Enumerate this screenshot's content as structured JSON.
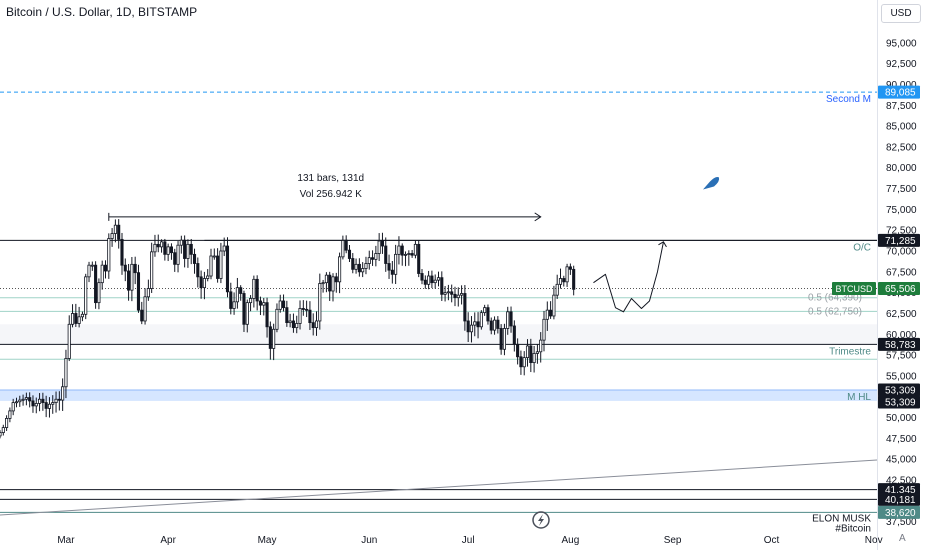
{
  "header": {
    "title": "Bitcoin / U.S. Dollar, 1D, BITSTAMP"
  },
  "axis": {
    "currency": "USD",
    "auto": "A"
  },
  "measure": {
    "bars_label": "131 bars, 131d",
    "vol_label": "Vol 256.942 K"
  },
  "colors": {
    "up": "#131722",
    "down": "#131722",
    "blue_line": "#2962ff",
    "dashed": "#2196f3",
    "teal_text": "#4f8a87"
  },
  "chart_data": {
    "type": "candlestick",
    "ylim": [
      36500,
      97500
    ],
    "y_ticks": [
      37500,
      40000,
      42500,
      45000,
      47500,
      50000,
      52500,
      55000,
      57500,
      60000,
      62500,
      65000,
      67500,
      70000,
      72500,
      75000,
      77500,
      80000,
      82500,
      85000,
      87500,
      90000,
      92500,
      95000
    ],
    "y_tick_labels": [
      "37,500",
      "40,000",
      "42,500",
      "45,000",
      "47,500",
      "50,000",
      "52,500",
      "55,000",
      "57,500",
      "60,000",
      "62,500",
      "65,000",
      "67,500",
      "70,000",
      "72,500",
      "75,000",
      "77,500",
      "80,000",
      "82,500",
      "85,000",
      "87,500",
      "90,000",
      "92,500",
      "95,000"
    ],
    "x_labels": [
      {
        "label": "Mar",
        "date": "2024-03-01"
      },
      {
        "label": "Apr",
        "date": "2024-04-01"
      },
      {
        "label": "May",
        "date": "2024-05-01"
      },
      {
        "label": "Jun",
        "date": "2024-06-01"
      },
      {
        "label": "Jul",
        "date": "2024-07-01"
      },
      {
        "label": "Aug",
        "date": "2024-08-01"
      },
      {
        "label": "Sep",
        "date": "2024-09-01"
      },
      {
        "label": "Oct",
        "date": "2024-10-01"
      },
      {
        "label": "Nov",
        "date": "2024-11-01"
      }
    ],
    "x_range": [
      "2024-02-10",
      "2024-11-02"
    ],
    "close_series_start": "2024-02-10",
    "closes": [
      48200,
      48800,
      49900,
      50800,
      51800,
      51900,
      52100,
      52200,
      52400,
      52000,
      51400,
      51700,
      52200,
      51800,
      51100,
      51600,
      51800,
      52200,
      52100,
      53700,
      57100,
      61200,
      62500,
      61300,
      62100,
      62400,
      66900,
      68300,
      68300,
      63800,
      66200,
      68300,
      67600,
      71500,
      72100,
      73100,
      71400,
      68300,
      67600,
      65300,
      68400,
      67400,
      62900,
      61600,
      64500,
      65500,
      69900,
      70800,
      70500,
      71100,
      69600,
      70500,
      69800,
      68400,
      70700,
      71300,
      69100,
      70800,
      69600,
      68500,
      66900,
      65600,
      66700,
      67000,
      69400,
      69400,
      66700,
      70000,
      70600,
      65100,
      63100,
      63900,
      65600,
      64900,
      61200,
      63800,
      64300,
      66600,
      64000,
      63500,
      63800,
      60900,
      58300,
      60600,
      63000,
      64000,
      63200,
      61400,
      61600,
      60800,
      61300,
      63100,
      63000,
      62900,
      61400,
      60800,
      61600,
      66100,
      66200,
      67100,
      65200,
      66900,
      66300,
      69300,
      71300,
      70100,
      69100,
      67800,
      68400,
      67500,
      67900,
      68500,
      69200,
      69000,
      69700,
      71200,
      70600,
      68500,
      67700,
      67200,
      69600,
      70600,
      69500,
      69600,
      69700,
      69500,
      70800,
      67300,
      66500,
      66000,
      67000,
      66200,
      66500,
      66800,
      64800,
      65000,
      65100,
      64800,
      64400,
      64700,
      64900,
      61600,
      60300,
      61100,
      61500,
      60900,
      62600,
      63200,
      61600,
      60500,
      61700,
      60700,
      58200,
      60700,
      62700,
      61000,
      58800,
      57300,
      56100,
      57200,
      58600,
      56600,
      57700,
      57900,
      59300,
      61800,
      62900,
      62200,
      64700,
      66000,
      66700,
      66300,
      68100,
      67800,
      65400
    ]
  },
  "levels": [
    {
      "value": 89085,
      "label": "89,085",
      "caption": "Second M",
      "style": "dashed-blue"
    },
    {
      "value": 71285,
      "label": "71,285",
      "caption": "O/C",
      "style": "dark"
    },
    {
      "value": 58783,
      "label": "58,783",
      "caption": "Trimestre",
      "style": "dark"
    },
    {
      "value": 53309,
      "label": "53,309",
      "caption": "M HL",
      "style": "dark"
    },
    {
      "value": 53309,
      "label": "53,309",
      "caption": "",
      "style": "blue-zone"
    },
    {
      "value": 41345,
      "label": "41,345",
      "caption": "",
      "style": "dark"
    },
    {
      "value": 40181,
      "label": "40,181",
      "caption": "",
      "style": "dark"
    },
    {
      "value": 38620,
      "label": "38,620",
      "caption": "ELON MUSK",
      "caption2": "#Bitcoin",
      "style": "teal"
    }
  ],
  "fib_labels": [
    {
      "value": 64390,
      "label": "0.5 (64,390)"
    },
    {
      "value": 62750,
      "label": "0.5 (62,750)"
    }
  ],
  "price_tag": {
    "symbol": "BTCUSD",
    "value": 65506,
    "label": "65,506"
  }
}
